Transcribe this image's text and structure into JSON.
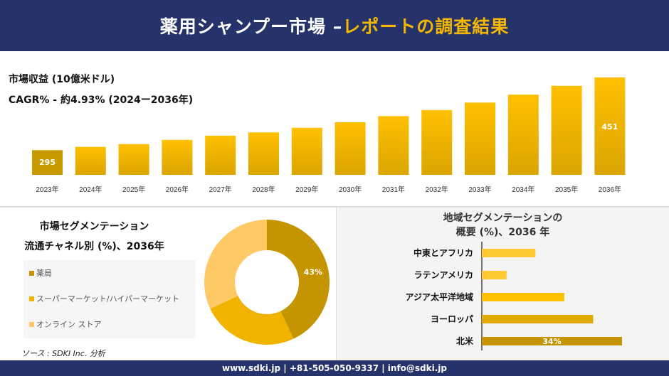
{
  "header": {
    "title_main": "薬用シャンプー市場 –",
    "title_accent": "レポートの調査結果"
  },
  "kpi": {
    "revenue_label": "市場収益 (10億米ドル)",
    "cagr_label": "CAGR% - 約4.93% (2024ー2036年)"
  },
  "colors": {
    "navy": "#26336b",
    "gold": "#f5b800",
    "bar_top": "#ffc000",
    "bar_bottom": "#daa500",
    "dark_gold": "#c49500",
    "light_gold": "#ffc966",
    "mid_gold": "#f0b400"
  },
  "chart_data": [
    {
      "type": "bar",
      "categories": [
        "2023年",
        "2024年",
        "2025年",
        "2026年",
        "2027年",
        "2028年",
        "2029年",
        "2030年",
        "2031年",
        "2032年",
        "2033年",
        "2034年",
        "2035年",
        "2036年"
      ],
      "values": [
        295,
        302,
        308,
        317,
        326,
        333,
        343,
        355,
        368,
        381,
        397,
        414,
        433,
        451
      ],
      "data_labels": {
        "0": "295",
        "13": "451"
      },
      "ylim": [
        242,
        460
      ],
      "grid": false
    },
    {
      "type": "pie",
      "title": "市場セグメンテーション",
      "subtitle": "流通チャネル別 (%)、2036年",
      "labels": [
        "薬局",
        "スーパーマーケット/ハイパーマーケット",
        "オンライン ストア"
      ],
      "values": [
        43,
        25,
        32
      ],
      "data_labels": [
        "43%",
        "",
        ""
      ],
      "colors": [
        "#c49500",
        "#f0b400",
        "#ffc966"
      ],
      "donut": true,
      "legend": "left"
    },
    {
      "type": "bar",
      "orientation": "horizontal",
      "title": "地域セグメンテーションの",
      "subtitle": "概要 (%)、2036 年",
      "categories": [
        "中東とアフリカ",
        "ラテンアメリカ",
        "アジア太平洋地域",
        "ヨーロッパ",
        "北米"
      ],
      "values": [
        13,
        6,
        20,
        27,
        34
      ],
      "data_labels": [
        "",
        "",
        "",
        "",
        "34%"
      ],
      "colors": [
        "#ffc933",
        "#ffc933",
        "#ffc000",
        "#e0aa00",
        "#c49500"
      ]
    }
  ],
  "source": "ソース : SDKI Inc. 分析",
  "footer": {
    "text": "www.sdki.jp | +81-505-050-9337 | info@sdki.jp"
  }
}
